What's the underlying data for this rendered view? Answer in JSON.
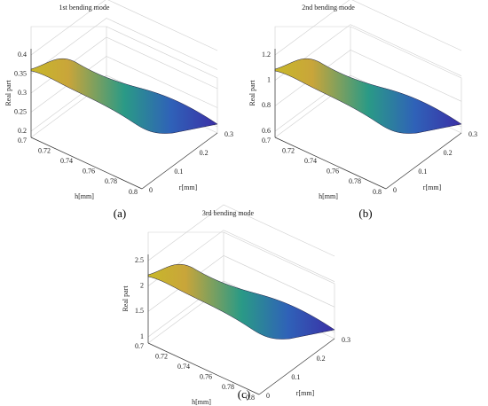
{
  "figure": {
    "panels": [
      {
        "title": "1st bending mode",
        "label": "(a)",
        "zlabel": "Real part",
        "xlabel": "h[mm]",
        "ylabel": "r[mm]",
        "xticks": [
          0.7,
          0.72,
          0.74,
          0.76,
          0.78,
          0.8
        ],
        "yticks": [
          0,
          0.1,
          0.2,
          0.3
        ],
        "zticks": [
          0.4,
          0.35,
          0.3,
          0.25,
          0.2
        ]
      },
      {
        "title": "2nd bending mode",
        "label": "(b)",
        "zlabel": "Real part",
        "xlabel": "h[mm]",
        "ylabel": "r[mm]",
        "xticks": [
          0.7,
          0.72,
          0.74,
          0.76,
          0.78,
          0.8
        ],
        "yticks": [
          0,
          0.1,
          0.2,
          0.3
        ],
        "zticks": [
          1.2,
          1,
          0.8,
          0.6
        ]
      },
      {
        "title": "3rd bending mode",
        "label": "(c)",
        "zlabel": "Real part",
        "xlabel": "h[mm]",
        "ylabel": "r[mm]",
        "xticks": [
          0.7,
          0.72,
          0.74,
          0.76,
          0.78,
          0.8
        ],
        "yticks": [
          0,
          0.1,
          0.2,
          0.3
        ],
        "zticks": [
          2.5,
          2,
          1.5,
          1
        ]
      }
    ]
  }
}
